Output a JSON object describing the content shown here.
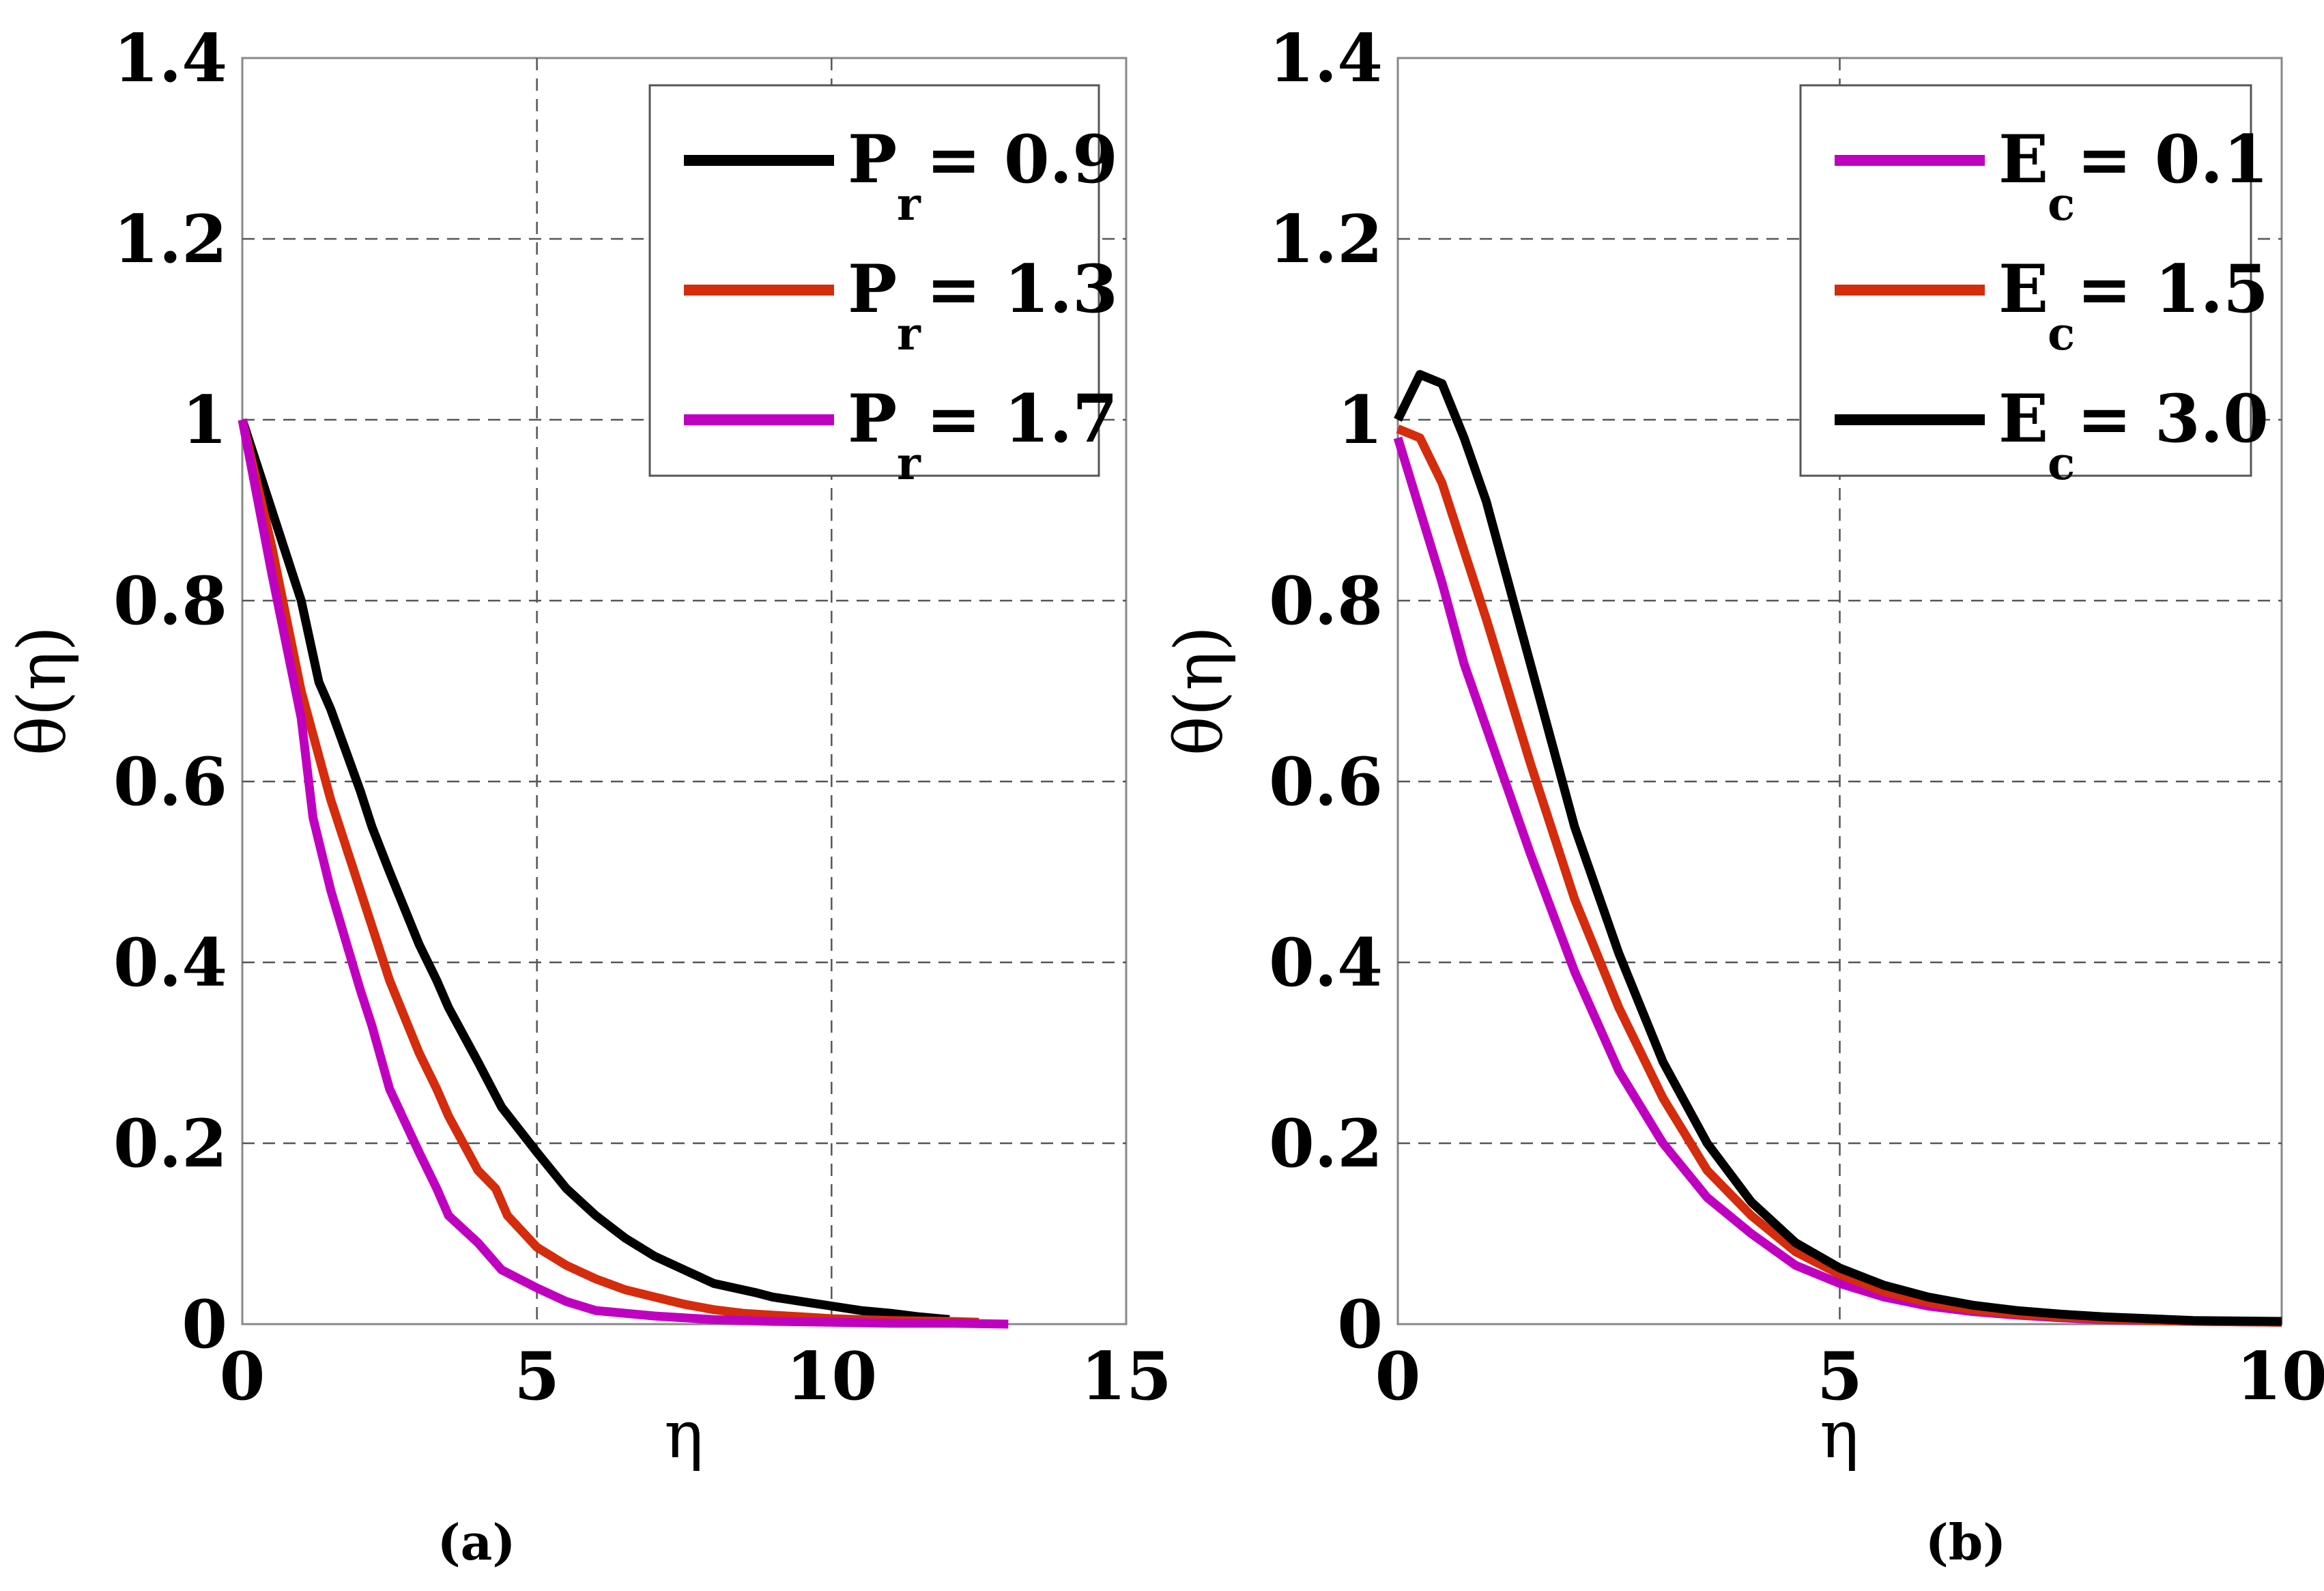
{
  "chart_data": [
    {
      "type": "line",
      "panel_label": "(a)",
      "xlabel": "η",
      "ylabel": "θ(η)",
      "xlim": [
        0,
        15
      ],
      "ylim": [
        0,
        1.4
      ],
      "xticks": [
        0,
        5,
        10,
        15
      ],
      "yticks": [
        0,
        0.2,
        0.4,
        0.6,
        0.8,
        1,
        1.2,
        1.4
      ],
      "xtick_labels": [
        "0",
        "5",
        "10",
        "15"
      ],
      "ytick_labels": [
        "0",
        "0.2",
        "0.4",
        "0.6",
        "0.8",
        "1",
        "1.2",
        "1.4"
      ],
      "grid": true,
      "legend_position": "top-right",
      "series": [
        {
          "name": "Pr = 0.9",
          "legend_main": "P",
          "legend_sub": "r",
          "legend_value": "= 0.9",
          "color": "#000000",
          "x": [
            0,
            0.5,
            1,
            1.3,
            1.5,
            2,
            2.2,
            2.5,
            3,
            3.3,
            3.5,
            4,
            4.4,
            5,
            5.5,
            6,
            6.5,
            7,
            7.5,
            8,
            8.7,
            9,
            9.5,
            10,
            10.5,
            11,
            11.5,
            12
          ],
          "y": [
            1,
            0.9,
            0.8,
            0.71,
            0.68,
            0.59,
            0.55,
            0.5,
            0.42,
            0.38,
            0.35,
            0.29,
            0.24,
            0.19,
            0.15,
            0.12,
            0.095,
            0.075,
            0.06,
            0.045,
            0.035,
            0.03,
            0.025,
            0.02,
            0.015,
            0.012,
            0.008,
            0.005
          ]
        },
        {
          "name": "Pr = 1.3",
          "legend_main": "P",
          "legend_sub": "r",
          "legend_value": "= 1.3",
          "color": "#d42c0c",
          "x": [
            0,
            0.5,
            1,
            1.5,
            2,
            2.3,
            2.5,
            3,
            3.3,
            3.5,
            4,
            4.3,
            4.5,
            5,
            5.5,
            6,
            6.5,
            7,
            7.5,
            8,
            8.5,
            9,
            9.5,
            10,
            10.5,
            11,
            12,
            12.5
          ],
          "y": [
            1,
            0.86,
            0.7,
            0.58,
            0.48,
            0.42,
            0.38,
            0.3,
            0.26,
            0.23,
            0.17,
            0.15,
            0.12,
            0.085,
            0.065,
            0.05,
            0.038,
            0.03,
            0.022,
            0.016,
            0.012,
            0.01,
            0.008,
            0.006,
            0.005,
            0.004,
            0.003,
            0.002
          ]
        },
        {
          "name": "Pr = 1.7",
          "legend_main": "P",
          "legend_sub": "r",
          "legend_value": "= 1.7",
          "color": "#c000c0",
          "x": [
            0,
            0.5,
            1,
            1.2,
            1.5,
            2,
            2.2,
            2.5,
            3,
            3.3,
            3.5,
            4,
            4.4,
            5,
            5.5,
            6,
            6.5,
            7,
            7.5,
            8,
            9,
            10,
            11,
            12,
            13
          ],
          "y": [
            1,
            0.83,
            0.67,
            0.56,
            0.48,
            0.37,
            0.33,
            0.26,
            0.19,
            0.15,
            0.12,
            0.09,
            0.06,
            0.04,
            0.025,
            0.015,
            0.012,
            0.009,
            0.007,
            0.005,
            0.003,
            0.002,
            0.001,
            0.001,
            0
          ]
        }
      ]
    },
    {
      "type": "line",
      "panel_label": "(b)",
      "xlabel": "η",
      "ylabel": "θ(η)",
      "xlim": [
        0,
        10
      ],
      "ylim": [
        0,
        1.4
      ],
      "xticks": [
        0,
        5,
        10
      ],
      "yticks": [
        0,
        0.2,
        0.4,
        0.6,
        0.8,
        1,
        1.2,
        1.4
      ],
      "xtick_labels": [
        "0",
        "5",
        "10"
      ],
      "ytick_labels": [
        "0",
        "0.2",
        "0.4",
        "0.6",
        "0.8",
        "1",
        "1.2",
        "1.4"
      ],
      "grid": true,
      "legend_position": "top-right",
      "series": [
        {
          "name": "Ec = 0.1",
          "legend_main": "E",
          "legend_sub": "c",
          "legend_value": "= 0.1",
          "color": "#c000c0",
          "x": [
            0,
            0.5,
            0.75,
            1,
            1.5,
            2,
            2.5,
            3,
            3.5,
            4,
            4.5,
            5,
            5.5,
            6,
            6.5,
            7,
            7.5,
            8,
            8.5,
            9,
            10
          ],
          "y": [
            0.98,
            0.82,
            0.73,
            0.66,
            0.52,
            0.39,
            0.28,
            0.2,
            0.14,
            0.1,
            0.065,
            0.045,
            0.03,
            0.02,
            0.014,
            0.01,
            0.007,
            0.005,
            0.004,
            0.003,
            0.002
          ]
        },
        {
          "name": "Ec = 1.5",
          "legend_main": "E",
          "legend_sub": "c",
          "legend_value": "= 1.5",
          "color": "#d42c0c",
          "x": [
            0,
            0.25,
            0.5,
            1,
            1.5,
            2,
            2.5,
            3,
            3.5,
            4,
            4.5,
            5,
            5.5,
            6,
            6.5,
            7,
            7.5,
            8,
            8.5,
            9,
            10
          ],
          "y": [
            0.99,
            0.98,
            0.93,
            0.78,
            0.62,
            0.47,
            0.35,
            0.25,
            0.17,
            0.12,
            0.08,
            0.055,
            0.036,
            0.024,
            0.016,
            0.011,
            0.008,
            0.006,
            0.004,
            0.003,
            0.002
          ]
        },
        {
          "name": "Ec = 3.0",
          "legend_main": "E",
          "legend_sub": "c",
          "legend_value": "= 3.0",
          "color": "#000000",
          "x": [
            0,
            0.25,
            0.5,
            0.75,
            1,
            1.5,
            2,
            2.5,
            3,
            3.5,
            4,
            4.5,
            5,
            5.5,
            6,
            6.5,
            7,
            7.5,
            8,
            8.5,
            9,
            10
          ],
          "y": [
            1,
            1.05,
            1.04,
            0.98,
            0.91,
            0.73,
            0.55,
            0.41,
            0.29,
            0.2,
            0.135,
            0.09,
            0.062,
            0.043,
            0.03,
            0.021,
            0.015,
            0.011,
            0.008,
            0.006,
            0.004,
            0.003
          ]
        }
      ]
    }
  ]
}
